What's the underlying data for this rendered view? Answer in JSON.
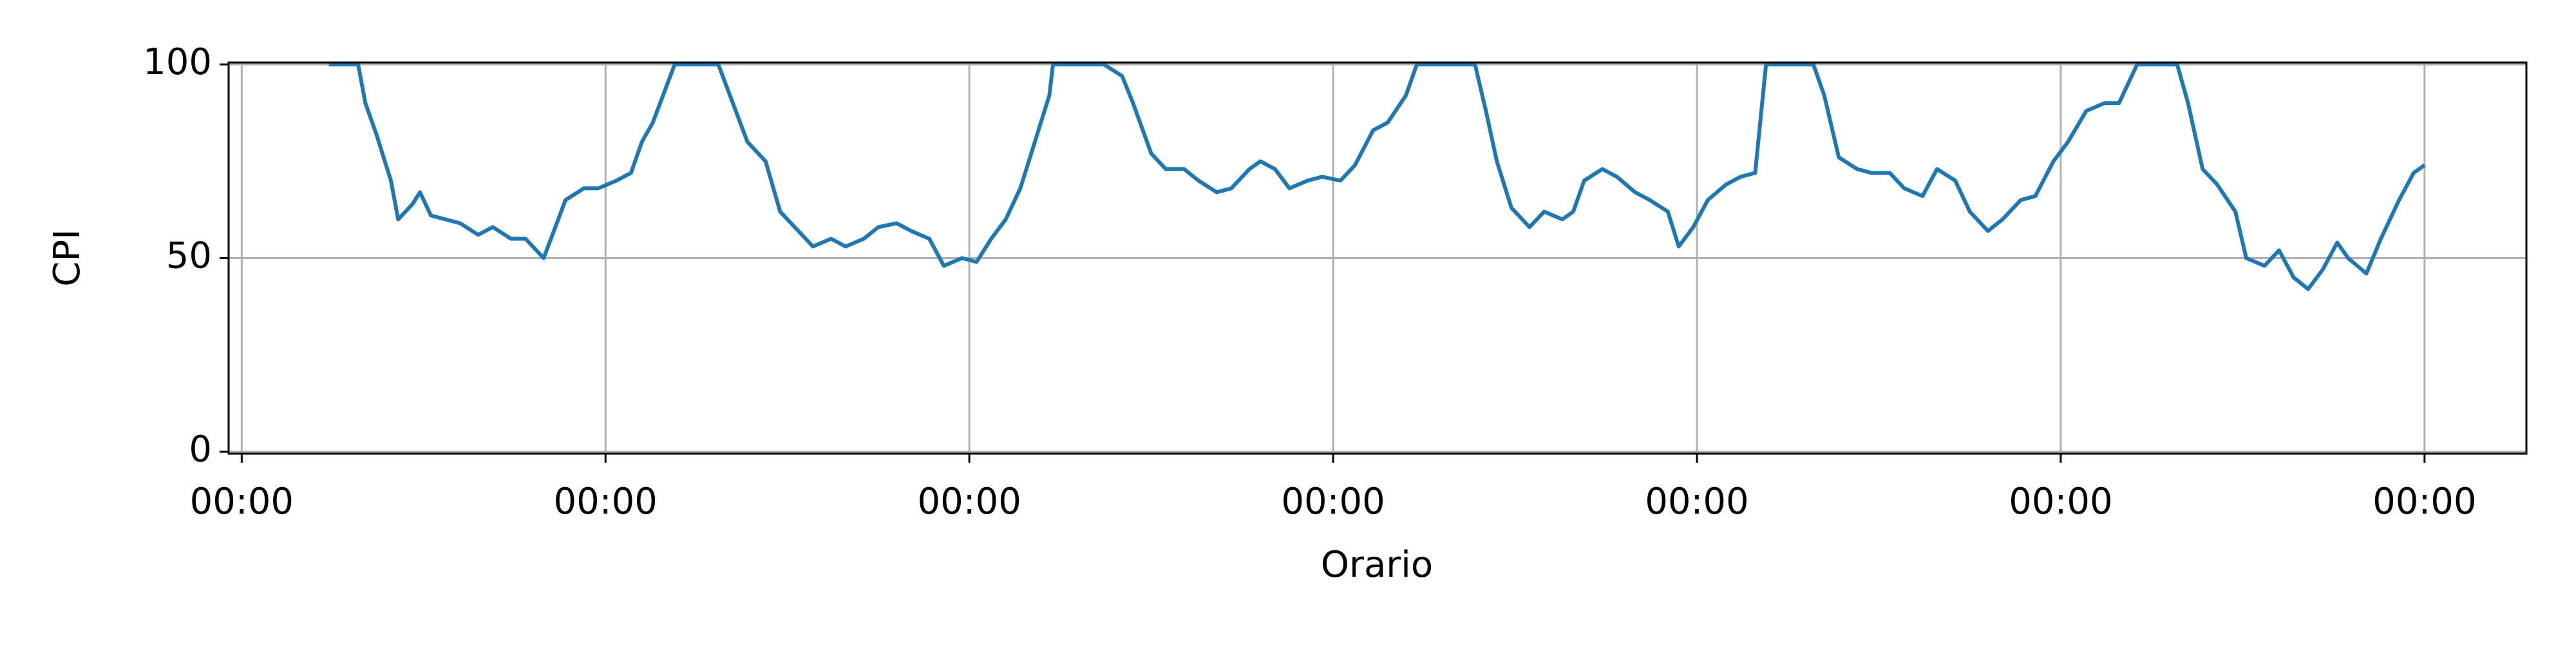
{
  "chart_data": {
    "type": "line",
    "xlabel": "Orario",
    "ylabel": "CPI",
    "color": "#1f77b4",
    "grid": true,
    "x": [
      0.24,
      0.32,
      0.34,
      0.37,
      0.41,
      0.43,
      0.47,
      0.49,
      0.52,
      0.56,
      0.6,
      0.65,
      0.69,
      0.74,
      0.78,
      0.83,
      0.87,
      0.89,
      0.94,
      0.98,
      1.03,
      1.07,
      1.1,
      1.13,
      1.19,
      1.31,
      1.35,
      1.39,
      1.44,
      1.48,
      1.53,
      1.57,
      1.62,
      1.66,
      1.71,
      1.75,
      1.8,
      1.84,
      1.89,
      1.93,
      1.98,
      2.02,
      2.06,
      2.1,
      2.14,
      2.18,
      2.22,
      2.23,
      2.37,
      2.42,
      2.45,
      2.5,
      2.54,
      2.59,
      2.63,
      2.68,
      2.72,
      2.77,
      2.8,
      2.84,
      2.88,
      2.93,
      2.97,
      3.02,
      3.06,
      3.11,
      3.15,
      3.2,
      3.23,
      3.39,
      3.42,
      3.45,
      3.49,
      3.54,
      3.58,
      3.63,
      3.66,
      3.69,
      3.74,
      3.78,
      3.83,
      3.87,
      3.92,
      3.95,
      3.99,
      4.03,
      4.08,
      4.12,
      4.16,
      4.19,
      4.32,
      4.35,
      4.39,
      4.44,
      4.48,
      4.53,
      4.57,
      4.62,
      4.66,
      4.71,
      4.75,
      4.8,
      4.84,
      4.89,
      4.93,
      4.98,
      5.02,
      5.07,
      5.12,
      5.16,
      5.21,
      5.32,
      5.35,
      5.39,
      5.43,
      5.48,
      5.51,
      5.56,
      5.6,
      5.64,
      5.68,
      5.72,
      5.76,
      5.79,
      5.84,
      5.88,
      5.93,
      5.97,
      6.0
    ],
    "values": [
      100,
      100,
      90,
      82,
      70,
      60,
      64,
      67,
      61,
      60,
      59,
      56,
      58,
      55,
      55,
      50,
      60,
      65,
      68,
      68,
      70,
      72,
      80,
      85,
      100,
      100,
      90,
      80,
      75,
      62,
      57,
      53,
      55,
      53,
      55,
      58,
      59,
      57,
      55,
      48,
      50,
      49,
      55,
      60,
      68,
      80,
      92,
      100,
      100,
      97,
      90,
      77,
      73,
      73,
      70,
      67,
      68,
      73,
      75,
      73,
      68,
      70,
      71,
      70,
      74,
      83,
      85,
      92,
      100,
      100,
      88,
      75,
      63,
      58,
      62,
      60,
      62,
      70,
      73,
      71,
      67,
      65,
      62,
      53,
      58,
      65,
      69,
      71,
      72,
      100,
      100,
      92,
      76,
      73,
      72,
      72,
      68,
      66,
      73,
      70,
      62,
      57,
      60,
      65,
      66,
      75,
      80,
      88,
      90,
      90,
      100,
      100,
      90,
      73,
      69,
      62,
      50,
      48,
      52,
      45,
      42,
      47,
      54,
      50,
      46,
      55,
      65,
      72,
      74
    ],
    "xlim": [
      -0.036,
      6.28
    ],
    "xticks": [
      {
        "value": 0,
        "label": "00:00"
      },
      {
        "value": 1,
        "label": "00:00"
      },
      {
        "value": 2,
        "label": "00:00"
      },
      {
        "value": 3,
        "label": "00:00"
      },
      {
        "value": 4,
        "label": "00:00"
      },
      {
        "value": 5,
        "label": "00:00"
      },
      {
        "value": 6,
        "label": "00:00"
      }
    ],
    "ylim": [
      -0.5,
      100.5
    ],
    "yticks": [
      0,
      50,
      100
    ]
  }
}
